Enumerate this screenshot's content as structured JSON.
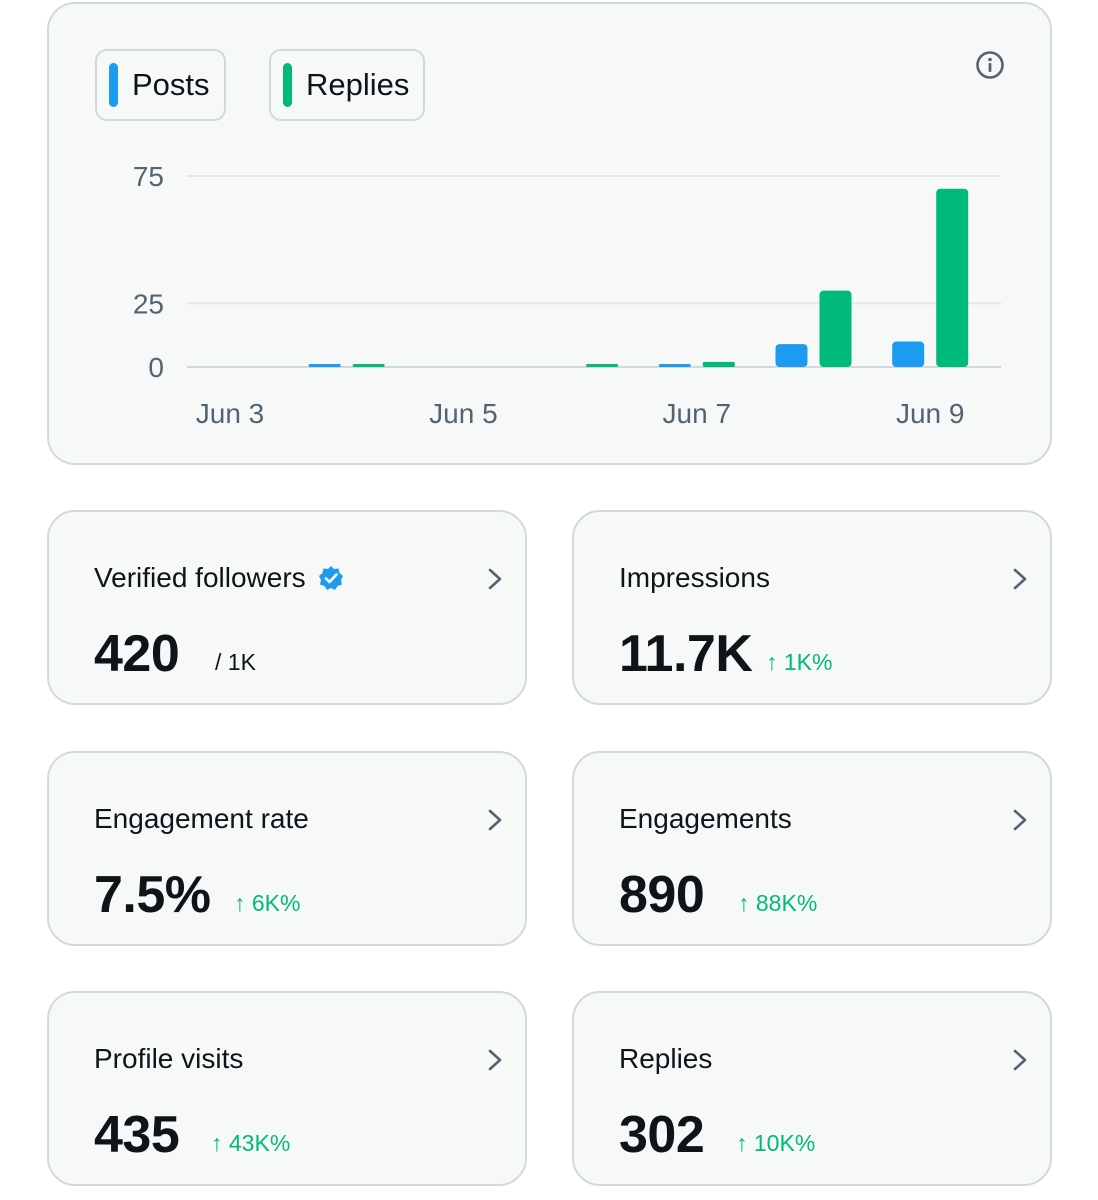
{
  "legend": {
    "posts_label": "Posts",
    "replies_label": "Replies",
    "posts_color": "#1d9bf0",
    "replies_color": "#00ba7c"
  },
  "chart_data": {
    "type": "bar",
    "categories": [
      "Jun 3",
      "Jun 4",
      "Jun 5",
      "Jun 6",
      "Jun 7",
      "Jun 8",
      "Jun 9"
    ],
    "x_tick_labels": [
      "Jun 3",
      "Jun 5",
      "Jun 7",
      "Jun 9"
    ],
    "y_ticks": [
      "0",
      "25",
      "75"
    ],
    "ylim": [
      0,
      75
    ],
    "series": [
      {
        "name": "Posts",
        "color": "#1d9bf0",
        "values": [
          0,
          1,
          0,
          0,
          1,
          9,
          10
        ]
      },
      {
        "name": "Replies",
        "color": "#00ba7c",
        "values": [
          0,
          1,
          0,
          1,
          2,
          30,
          70
        ]
      }
    ],
    "grid": true,
    "legend_position": "top-left"
  },
  "stats": [
    {
      "title": "Verified followers",
      "value": "420",
      "sub": "/ 1K",
      "trend": "neutral",
      "verified_badge": true
    },
    {
      "title": "Impressions",
      "value": "11.7K",
      "sub": "↑ 1K%",
      "trend": "up"
    },
    {
      "title": "Engagement rate",
      "value": "7.5%",
      "sub": "↑ 6K%",
      "trend": "up"
    },
    {
      "title": "Engagements",
      "value": "890",
      "sub": "↑ 88K%",
      "trend": "up"
    },
    {
      "title": "Profile visits",
      "value": "435",
      "sub": "↑ 43K%",
      "trend": "up"
    },
    {
      "title": "Replies",
      "value": "302",
      "sub": "↑ 10K%",
      "trend": "up"
    }
  ],
  "icons": {
    "info": "info-icon",
    "chevron": "chevron-right-icon",
    "verified": "verified-badge-icon"
  }
}
